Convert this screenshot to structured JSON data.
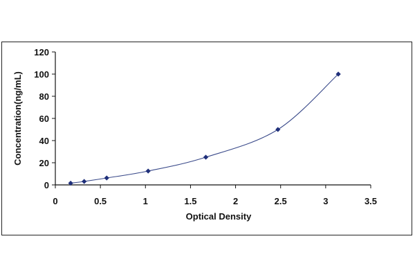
{
  "chart_data": {
    "type": "scatter",
    "title": "",
    "xlabel": "Optical Density",
    "ylabel": "Concentration(ng/mL)",
    "xlim": [
      0,
      3.5
    ],
    "ylim": [
      0,
      120
    ],
    "x_ticks": [
      "0",
      "0.5",
      "1",
      "1.5",
      "2",
      "2.5",
      "3",
      "3.5"
    ],
    "y_ticks": [
      "0",
      "20",
      "40",
      "60",
      "80",
      "100",
      "120"
    ],
    "grid": false,
    "legend": "none",
    "series": [
      {
        "x": [
          0.17,
          0.32,
          0.57,
          1.03,
          1.67,
          2.47,
          3.14
        ],
        "y": [
          1.56,
          3.12,
          6.25,
          12.5,
          25,
          50,
          100
        ],
        "marker": "diamond",
        "trendline": "smooth"
      }
    ],
    "colors": {
      "marker": "#1f2f7a",
      "line": "#3a4a8a",
      "axis": "#111111"
    }
  }
}
